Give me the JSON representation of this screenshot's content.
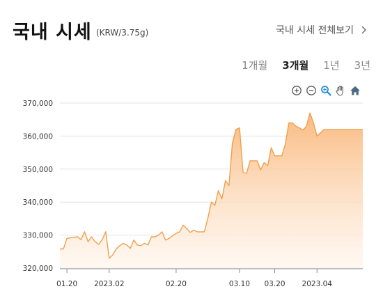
{
  "header": {
    "title": "국내 시세",
    "unit": "(KRW/3.75g)",
    "more_label": "국내 시세 전체보기"
  },
  "tabs": [
    {
      "label": "1개월",
      "active": false
    },
    {
      "label": "3개월",
      "active": true
    },
    {
      "label": "1년",
      "active": false
    },
    {
      "label": "3년",
      "active": false
    }
  ],
  "toolbar": {
    "icons": [
      "zoom-in-icon",
      "zoom-out-icon",
      "magnify-icon",
      "pan-hand-icon",
      "home-icon"
    ]
  },
  "chart_data": {
    "type": "area",
    "xlabel": "",
    "ylabel": "",
    "ylim": [
      320000,
      370000
    ],
    "yticks": [
      320000,
      330000,
      340000,
      350000,
      360000,
      370000
    ],
    "ytick_labels": [
      "320,000",
      "330,000",
      "340,000",
      "350,000",
      "360,000",
      "370,000"
    ],
    "xticks": [
      {
        "label": "01.20",
        "date": "2023-01-20"
      },
      {
        "label": "2023.02",
        "date": "2023-02-01"
      },
      {
        "label": "02.20",
        "date": "2023-02-20"
      },
      {
        "label": "03.10",
        "date": "2023-03-10"
      },
      {
        "label": "03.20",
        "date": "2023-03-20"
      },
      {
        "label": "2023.04",
        "date": "2023-04-01"
      }
    ],
    "grid": true,
    "colors": {
      "line": "#f0a04b",
      "fill_top": "#f9b77a",
      "fill_bottom": "#fff4ea"
    },
    "series": [
      {
        "x": [
          "2023-01-18",
          "2023-01-19",
          "2023-01-20",
          "2023-01-23",
          "2023-01-24",
          "2023-01-25",
          "2023-01-26",
          "2023-01-27",
          "2023-01-28",
          "2023-01-29",
          "2023-01-30",
          "2023-01-31",
          "2023-02-01",
          "2023-02-02",
          "2023-02-03",
          "2023-02-04",
          "2023-02-05",
          "2023-02-06",
          "2023-02-07",
          "2023-02-08",
          "2023-02-09",
          "2023-02-10",
          "2023-02-11",
          "2023-02-12",
          "2023-02-13",
          "2023-02-14",
          "2023-02-15",
          "2023-02-16",
          "2023-02-17",
          "2023-02-18",
          "2023-02-19",
          "2023-02-20",
          "2023-02-21",
          "2023-02-22",
          "2023-02-23",
          "2023-02-24",
          "2023-02-25",
          "2023-02-26",
          "2023-02-27",
          "2023-02-28",
          "2023-03-01",
          "2023-03-02",
          "2023-03-03",
          "2023-03-04",
          "2023-03-05",
          "2023-03-06",
          "2023-03-07",
          "2023-03-08",
          "2023-03-09",
          "2023-03-10",
          "2023-03-11",
          "2023-03-12",
          "2023-03-13",
          "2023-03-14",
          "2023-03-15",
          "2023-03-16",
          "2023-03-17",
          "2023-03-18",
          "2023-03-19",
          "2023-03-20",
          "2023-03-21",
          "2023-03-22",
          "2023-03-23",
          "2023-03-24",
          "2023-03-25",
          "2023-03-26",
          "2023-03-27",
          "2023-03-28",
          "2023-03-29",
          "2023-03-30",
          "2023-03-31",
          "2023-04-01",
          "2023-04-02",
          "2023-04-03",
          "2023-04-04",
          "2023-04-05",
          "2023-04-06",
          "2023-04-07",
          "2023-04-08",
          "2023-04-09",
          "2023-04-10",
          "2023-04-11",
          "2023-04-12",
          "2023-04-13",
          "2023-04-14"
        ],
        "values": [
          325800,
          325800,
          329000,
          329500,
          328600,
          331000,
          328000,
          329500,
          328000,
          327200,
          328600,
          331000,
          323000,
          324000,
          325800,
          326800,
          327500,
          327000,
          326000,
          328500,
          327000,
          326800,
          327500,
          327000,
          329500,
          329500,
          330000,
          331000,
          328500,
          329000,
          329800,
          330500,
          331000,
          333000,
          332000,
          330800,
          331500,
          331000,
          331000,
          331000,
          335000,
          340000,
          339000,
          343500,
          341000,
          346500,
          345000,
          358000,
          362000,
          362500,
          349000,
          348700,
          352500,
          352500,
          352500,
          349700,
          352000,
          351000,
          356500,
          354000,
          354000,
          354000,
          357500,
          364000,
          364000,
          363000,
          362500,
          361800,
          363000,
          367000,
          364000,
          360000,
          361000,
          362000,
          362000,
          362000,
          362000,
          362000,
          362000,
          362000,
          362000,
          362000,
          362000,
          362000,
          362000
        ]
      }
    ]
  }
}
